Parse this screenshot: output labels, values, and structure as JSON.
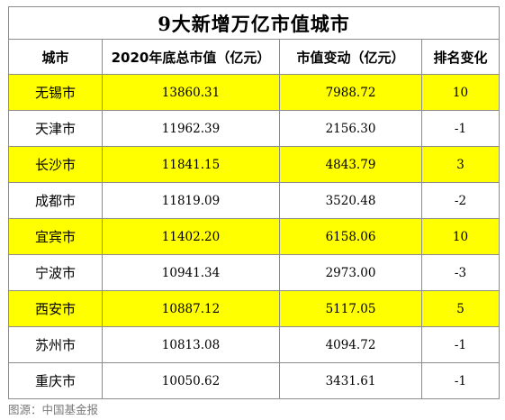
{
  "title": "9大新增万亿市值城市",
  "headers": [
    "城市",
    "2020年底总市值（亿元）",
    "市值变动（亿元）",
    "排名变化"
  ],
  "highlight_color": "#ffff00",
  "rows": [
    {
      "city": "无锡市",
      "total": "13860.31",
      "change": "7988.72",
      "rank": "10",
      "highlight": true
    },
    {
      "city": "天津市",
      "total": "11962.39",
      "change": "2156.30",
      "rank": "-1",
      "highlight": false
    },
    {
      "city": "长沙市",
      "total": "11841.15",
      "change": "4843.79",
      "rank": "3",
      "highlight": true
    },
    {
      "city": "成都市",
      "total": "11819.09",
      "change": "3520.48",
      "rank": "-2",
      "highlight": false
    },
    {
      "city": "宜宾市",
      "total": "11402.20",
      "change": "6158.06",
      "rank": "10",
      "highlight": true
    },
    {
      "city": "宁波市",
      "total": "10941.34",
      "change": "2973.00",
      "rank": "-3",
      "highlight": false
    },
    {
      "city": "西安市",
      "total": "10887.12",
      "change": "5117.05",
      "rank": "5",
      "highlight": true
    },
    {
      "city": "苏州市",
      "total": "10813.08",
      "change": "4094.72",
      "rank": "-1",
      "highlight": false
    },
    {
      "city": "重庆市",
      "total": "10050.62",
      "change": "3431.61",
      "rank": "-1",
      "highlight": false
    }
  ],
  "source": "图源：中国基金报"
}
